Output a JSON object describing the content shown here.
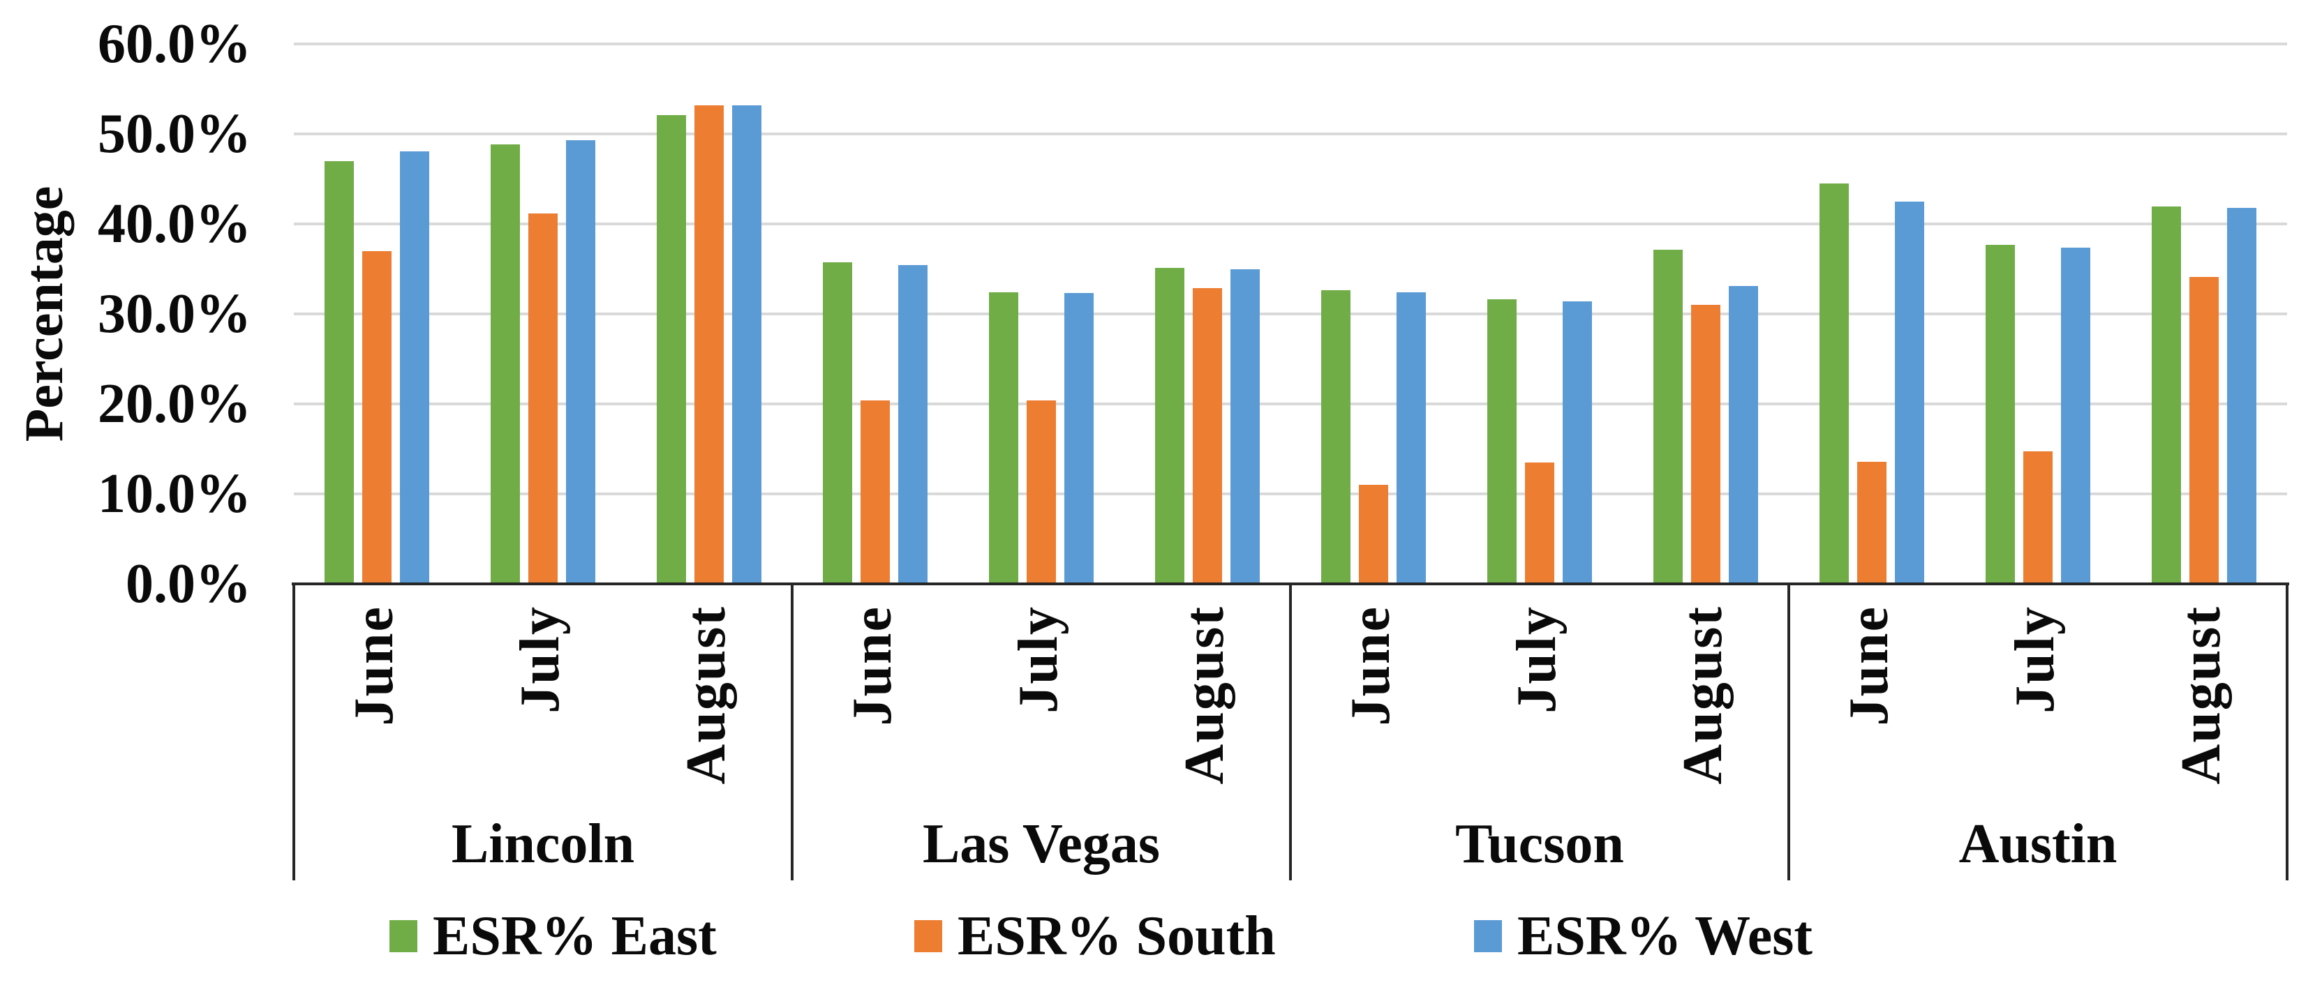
{
  "chart_data": {
    "type": "bar",
    "title": "",
    "ylabel": "Percentage",
    "xlabel": "",
    "ylim": [
      0,
      60
    ],
    "grid": "horizontal",
    "legend_position": "bottom",
    "ytick_values": [
      60,
      50,
      40,
      30,
      20,
      10,
      0
    ],
    "ytick_labels": [
      "60.0%",
      "50.0%",
      "40.0%",
      "30.0%",
      "20.0%",
      "10.0%",
      "0.0%"
    ],
    "groups": [
      "Lincoln",
      "Las Vegas",
      "Tucson",
      "Austin"
    ],
    "months": [
      "June",
      "July",
      "August"
    ],
    "series": [
      {
        "name": "ESR% East",
        "color": "#70AD47",
        "values": [
          [
            47.0,
            48.8,
            52.1
          ],
          [
            35.7,
            32.4,
            35.1
          ],
          [
            32.6,
            31.6,
            37.1
          ],
          [
            44.5,
            37.7,
            41.9
          ]
        ]
      },
      {
        "name": "ESR% South",
        "color": "#ED7D31",
        "values": [
          [
            37.0,
            41.2,
            53.2
          ],
          [
            20.4,
            20.4,
            32.9
          ],
          [
            11.0,
            13.5,
            31.0
          ],
          [
            13.6,
            14.7,
            34.1
          ]
        ]
      },
      {
        "name": "ESR% West",
        "color": "#5B9BD5",
        "values": [
          [
            48.1,
            49.3,
            53.2
          ],
          [
            35.4,
            32.3,
            35.0
          ],
          [
            32.4,
            31.4,
            33.1
          ],
          [
            42.5,
            37.4,
            41.8
          ]
        ]
      }
    ],
    "legend_x_positions": [
      558,
      1310,
      2112
    ]
  }
}
